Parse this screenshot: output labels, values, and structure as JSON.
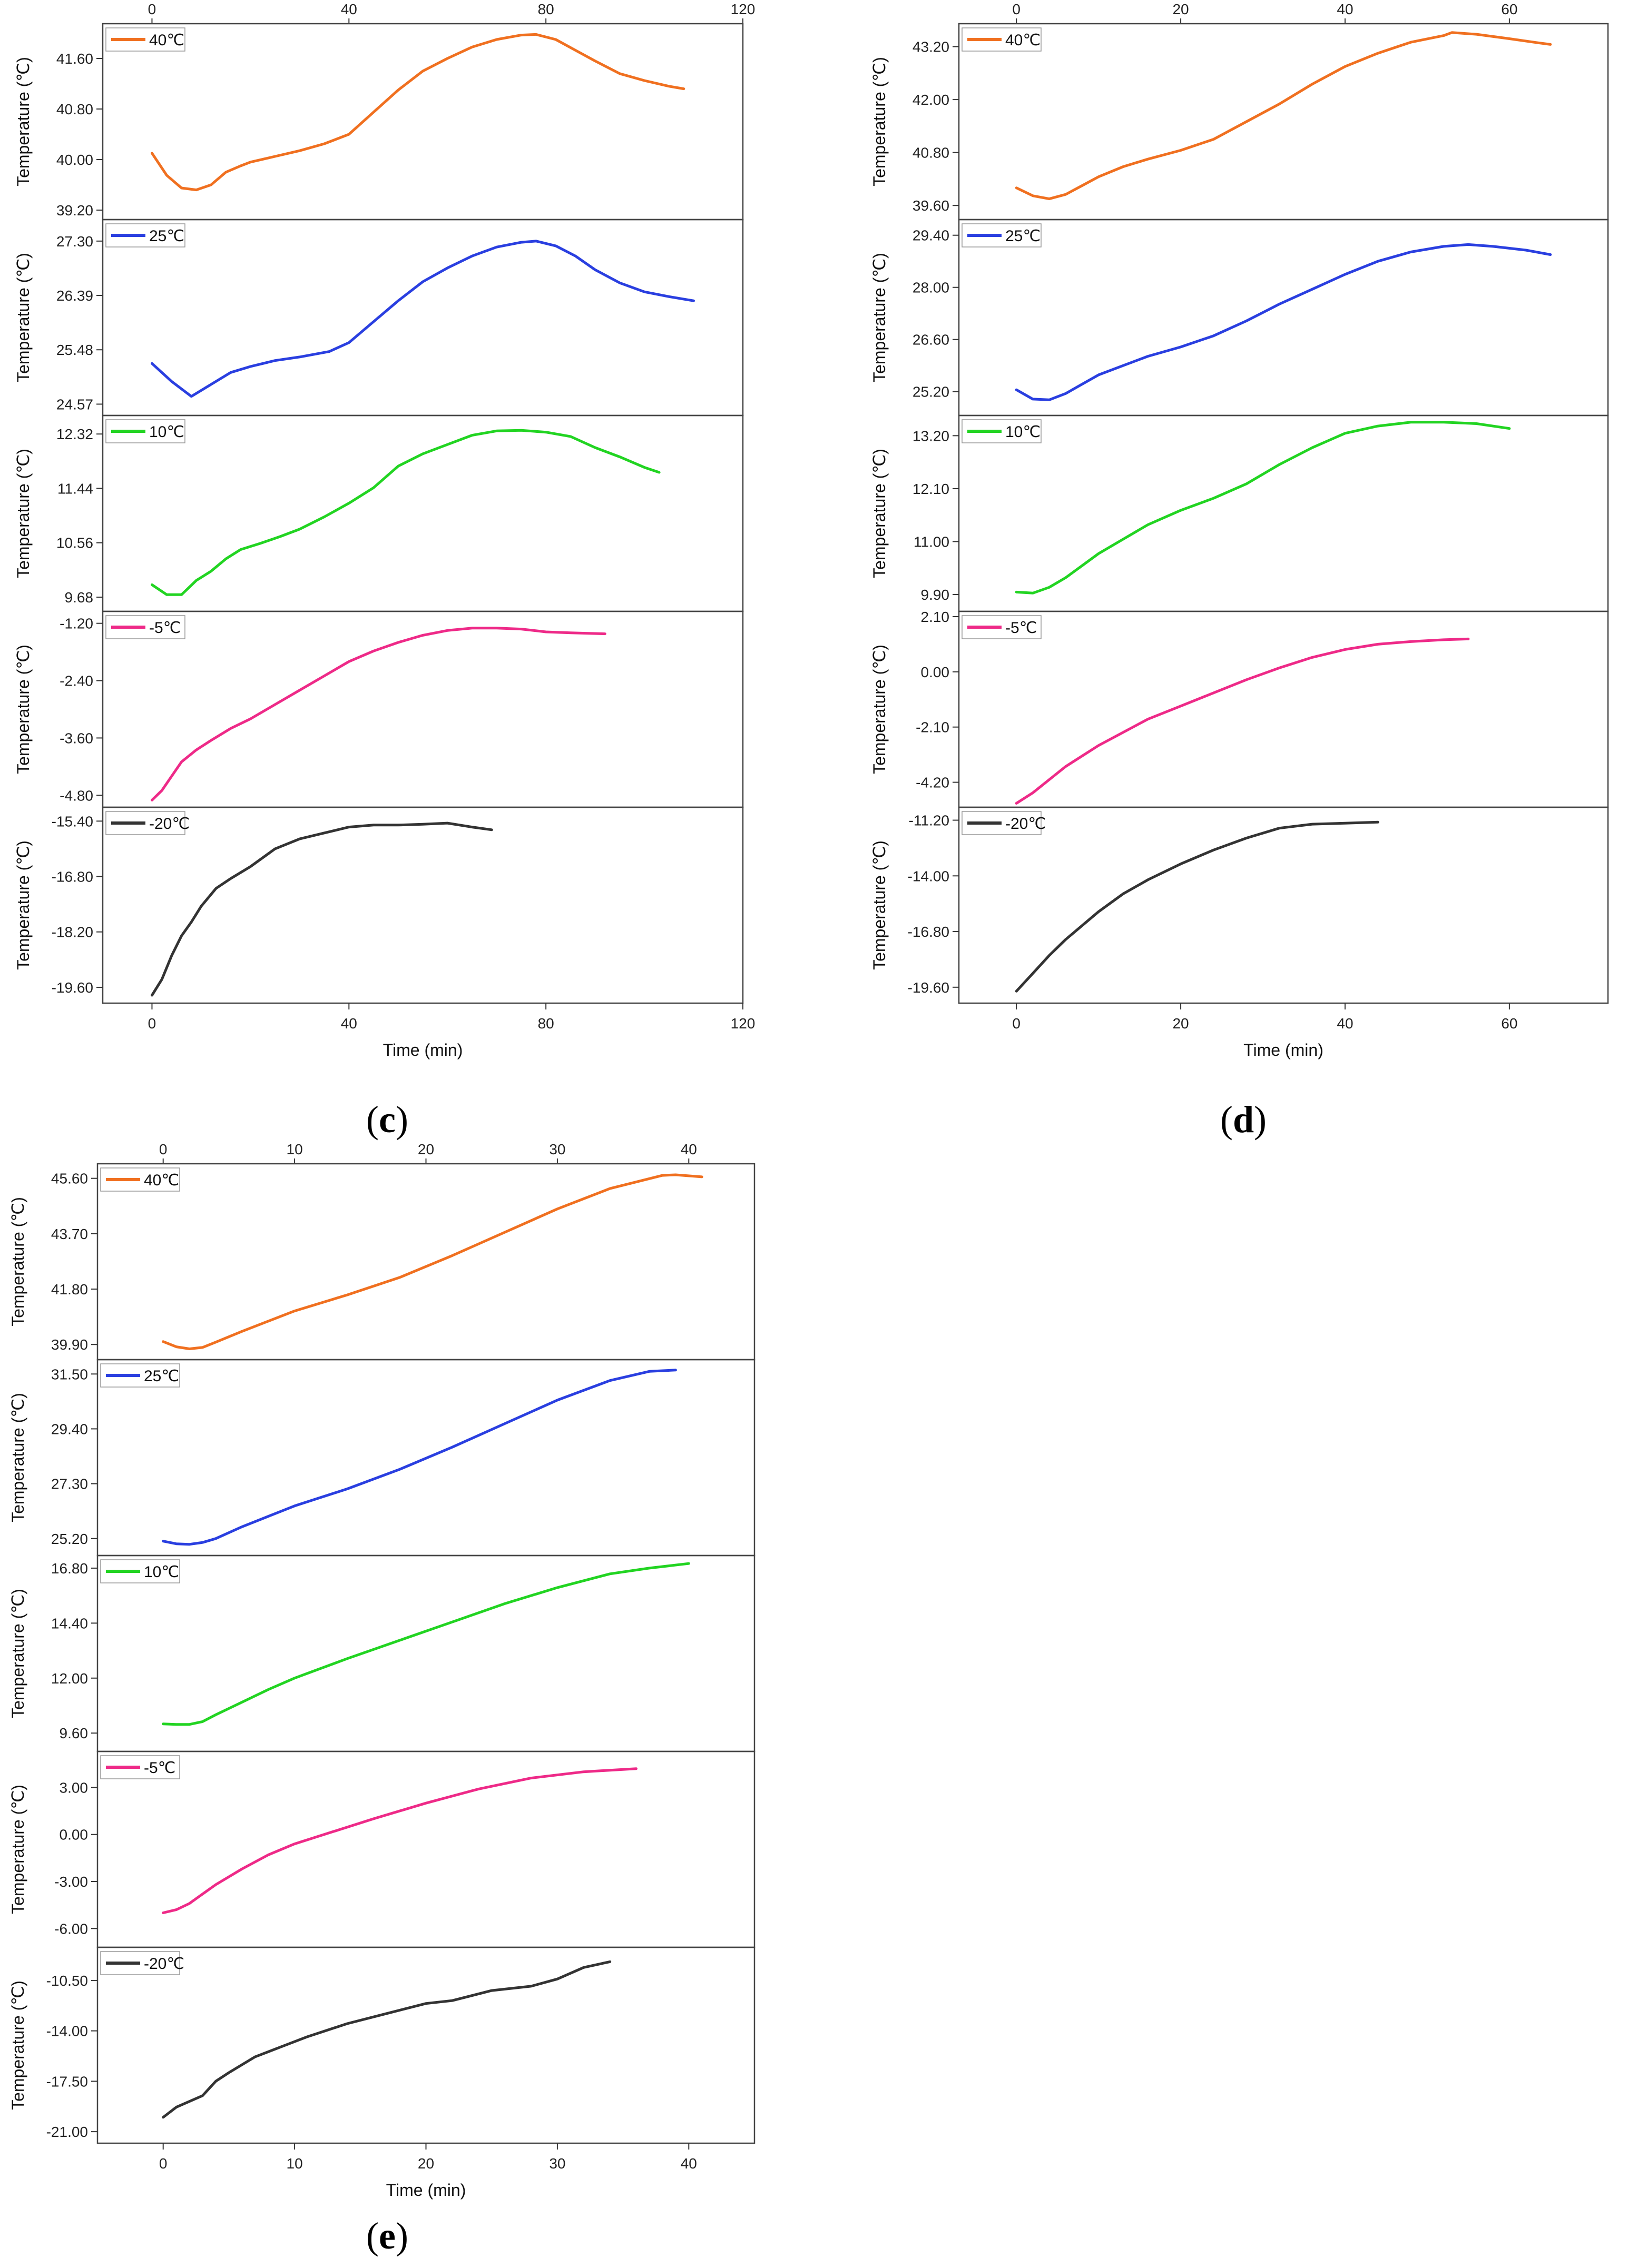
{
  "figure": {
    "caption_open": "(",
    "caption_close": ")",
    "ylabel": "Temperature (℃)",
    "xlabel": "Time (min)"
  },
  "chart_data": [
    {
      "id": "c",
      "label": "c",
      "type": "line",
      "xlabel": "Time (min)",
      "xlim": [
        -10,
        120
      ],
      "xticks": [
        0,
        40,
        80,
        120
      ],
      "subplots": [
        {
          "name": "40℃",
          "color": "#f07020",
          "ylim": [
            39.05,
            42.15
          ],
          "yticks": [
            39.2,
            40.0,
            40.8,
            41.6
          ],
          "x": [
            0,
            3,
            6,
            9,
            12,
            15,
            18,
            20,
            25,
            30,
            35,
            40,
            45,
            50,
            55,
            60,
            65,
            70,
            75,
            78,
            82,
            86,
            90,
            95,
            100,
            105,
            108
          ],
          "y": [
            40.1,
            39.75,
            39.55,
            39.52,
            39.6,
            39.8,
            39.9,
            39.96,
            40.05,
            40.14,
            40.25,
            40.4,
            40.75,
            41.1,
            41.4,
            41.6,
            41.78,
            41.9,
            41.97,
            41.98,
            41.9,
            41.73,
            41.56,
            41.36,
            41.25,
            41.16,
            41.12
          ]
        },
        {
          "name": "25℃",
          "color": "#2a3fe0",
          "ylim": [
            24.38,
            27.66
          ],
          "yticks": [
            24.57,
            25.48,
            26.39,
            27.3
          ],
          "x": [
            0,
            4,
            8,
            12,
            16,
            20,
            25,
            30,
            36,
            40,
            45,
            50,
            55,
            60,
            65,
            70,
            75,
            78,
            82,
            86,
            90,
            95,
            100,
            105,
            110
          ],
          "y": [
            25.25,
            24.95,
            24.7,
            24.9,
            25.1,
            25.2,
            25.3,
            25.36,
            25.45,
            25.6,
            25.95,
            26.3,
            26.62,
            26.85,
            27.05,
            27.2,
            27.28,
            27.3,
            27.22,
            27.05,
            26.82,
            26.6,
            26.45,
            26.37,
            26.3
          ]
        },
        {
          "name": "10℃",
          "color": "#22d422",
          "ylim": [
            9.45,
            12.62
          ],
          "yticks": [
            9.68,
            10.56,
            11.44,
            12.32
          ],
          "x": [
            0,
            3,
            6,
            9,
            12,
            15,
            18,
            22,
            26,
            30,
            35,
            40,
            45,
            50,
            55,
            60,
            65,
            70,
            75,
            80,
            85,
            90,
            95,
            100,
            103
          ],
          "y": [
            9.88,
            9.72,
            9.72,
            9.95,
            10.1,
            10.3,
            10.45,
            10.55,
            10.66,
            10.78,
            10.98,
            11.2,
            11.45,
            11.8,
            12.0,
            12.15,
            12.3,
            12.37,
            12.38,
            12.35,
            12.28,
            12.1,
            11.95,
            11.78,
            11.7
          ]
        },
        {
          "name": "-5℃",
          "color": "#ee2a88",
          "ylim": [
            -5.05,
            -0.95
          ],
          "yticks": [
            -4.8,
            -3.6,
            -2.4,
            -1.2
          ],
          "x": [
            0,
            2,
            4,
            6,
            9,
            12,
            16,
            20,
            25,
            30,
            35,
            40,
            45,
            50,
            55,
            60,
            65,
            70,
            75,
            80,
            85,
            92
          ],
          "y": [
            -4.9,
            -4.7,
            -4.4,
            -4.1,
            -3.85,
            -3.65,
            -3.4,
            -3.2,
            -2.9,
            -2.6,
            -2.3,
            -2.0,
            -1.78,
            -1.6,
            -1.45,
            -1.35,
            -1.3,
            -1.3,
            -1.32,
            -1.38,
            -1.4,
            -1.42
          ]
        },
        {
          "name": "-20℃",
          "color": "#333333",
          "ylim": [
            -20.0,
            -15.05
          ],
          "yticks": [
            -19.6,
            -18.2,
            -16.8,
            -15.4
          ],
          "x": [
            0,
            2,
            4,
            6,
            8,
            10,
            13,
            16,
            20,
            25,
            30,
            35,
            40,
            45,
            50,
            55,
            60,
            65,
            69
          ],
          "y": [
            -19.8,
            -19.4,
            -18.8,
            -18.3,
            -17.95,
            -17.55,
            -17.1,
            -16.85,
            -16.55,
            -16.1,
            -15.85,
            -15.7,
            -15.55,
            -15.5,
            -15.5,
            -15.48,
            -15.45,
            -15.55,
            -15.62
          ]
        }
      ]
    },
    {
      "id": "d",
      "label": "d",
      "type": "line",
      "xlabel": "Time (min)",
      "xlim": [
        -7,
        72
      ],
      "xticks": [
        0,
        20,
        40,
        60
      ],
      "subplots": [
        {
          "name": "40℃",
          "color": "#f07020",
          "ylim": [
            39.28,
            43.72
          ],
          "yticks": [
            39.6,
            40.8,
            42.0,
            43.2
          ],
          "x": [
            0,
            2,
            4,
            6,
            8,
            10,
            13,
            16,
            20,
            24,
            28,
            32,
            36,
            40,
            44,
            48,
            52,
            53,
            56,
            60,
            63,
            65
          ],
          "y": [
            40.0,
            39.82,
            39.75,
            39.85,
            40.05,
            40.25,
            40.48,
            40.65,
            40.85,
            41.1,
            41.5,
            41.9,
            42.35,
            42.75,
            43.05,
            43.3,
            43.45,
            43.52,
            43.48,
            43.38,
            43.3,
            43.25
          ]
        },
        {
          "name": "25℃",
          "color": "#2a3fe0",
          "ylim": [
            24.56,
            29.82
          ],
          "yticks": [
            25.2,
            26.6,
            28.0,
            29.4
          ],
          "x": [
            0,
            2,
            4,
            6,
            8,
            10,
            13,
            16,
            20,
            24,
            28,
            32,
            36,
            40,
            44,
            48,
            52,
            55,
            58,
            62,
            65
          ],
          "y": [
            25.25,
            25.0,
            24.98,
            25.15,
            25.4,
            25.65,
            25.9,
            26.15,
            26.4,
            26.7,
            27.1,
            27.55,
            27.95,
            28.35,
            28.7,
            28.95,
            29.1,
            29.15,
            29.1,
            29.0,
            28.88
          ]
        },
        {
          "name": "10℃",
          "color": "#22d422",
          "ylim": [
            9.55,
            13.62
          ],
          "yticks": [
            9.9,
            11.0,
            12.1,
            13.2
          ],
          "x": [
            0,
            2,
            4,
            6,
            8,
            10,
            13,
            16,
            20,
            24,
            28,
            32,
            36,
            40,
            44,
            48,
            52,
            56,
            60
          ],
          "y": [
            9.95,
            9.93,
            10.05,
            10.25,
            10.5,
            10.75,
            11.05,
            11.35,
            11.65,
            11.9,
            12.2,
            12.6,
            12.95,
            13.25,
            13.4,
            13.48,
            13.48,
            13.45,
            13.35
          ]
        },
        {
          "name": "-5℃",
          "color": "#ee2a88",
          "ylim": [
            -5.15,
            2.3
          ],
          "yticks": [
            -4.2,
            -2.1,
            0.0,
            2.1
          ],
          "x": [
            0,
            2,
            4,
            6,
            8,
            10,
            13,
            16,
            20,
            24,
            28,
            32,
            36,
            40,
            44,
            48,
            52,
            55
          ],
          "y": [
            -5.0,
            -4.6,
            -4.1,
            -3.6,
            -3.2,
            -2.8,
            -2.3,
            -1.8,
            -1.3,
            -0.8,
            -0.3,
            0.15,
            0.55,
            0.85,
            1.05,
            1.15,
            1.22,
            1.25
          ]
        },
        {
          "name": "-20℃",
          "color": "#333333",
          "ylim": [
            -20.4,
            -10.55
          ],
          "yticks": [
            -19.6,
            -16.8,
            -14.0,
            -11.2
          ],
          "x": [
            0,
            2,
            4,
            6,
            8,
            10,
            13,
            16,
            20,
            24,
            28,
            32,
            36,
            40,
            44
          ],
          "y": [
            -19.8,
            -18.9,
            -18.0,
            -17.2,
            -16.5,
            -15.8,
            -14.9,
            -14.2,
            -13.4,
            -12.7,
            -12.1,
            -11.6,
            -11.4,
            -11.35,
            -11.3
          ]
        }
      ]
    },
    {
      "id": "e",
      "label": "e",
      "type": "line",
      "xlabel": "Time (min)",
      "xlim": [
        -5,
        45
      ],
      "xticks": [
        0,
        10,
        20,
        30,
        40
      ],
      "subplots": [
        {
          "name": "40℃",
          "color": "#f07020",
          "ylim": [
            39.38,
            46.1
          ],
          "yticks": [
            39.9,
            41.8,
            43.7,
            45.6
          ],
          "x": [
            0,
            1,
            2,
            3,
            4,
            6,
            8,
            10,
            14,
            18,
            22,
            26,
            30,
            34,
            38,
            39,
            41
          ],
          "y": [
            40.0,
            39.82,
            39.75,
            39.8,
            39.98,
            40.35,
            40.7,
            41.05,
            41.6,
            42.2,
            42.95,
            43.75,
            44.55,
            45.25,
            45.7,
            45.72,
            45.65
          ]
        },
        {
          "name": "25℃",
          "color": "#2a3fe0",
          "ylim": [
            24.55,
            32.05
          ],
          "yticks": [
            25.2,
            27.3,
            29.4,
            31.5
          ],
          "x": [
            0,
            1,
            2,
            3,
            4,
            6,
            8,
            10,
            14,
            18,
            22,
            26,
            30,
            34,
            37,
            39
          ],
          "y": [
            25.1,
            25.0,
            24.98,
            25.05,
            25.2,
            25.65,
            26.05,
            26.45,
            27.1,
            27.85,
            28.7,
            29.6,
            30.5,
            31.25,
            31.6,
            31.65
          ]
        },
        {
          "name": "10℃",
          "color": "#22d422",
          "ylim": [
            8.8,
            17.35
          ],
          "yticks": [
            9.6,
            12.0,
            14.4,
            16.8
          ],
          "x": [
            0,
            1,
            2,
            3,
            4,
            6,
            8,
            10,
            14,
            18,
            22,
            26,
            30,
            34,
            37,
            40
          ],
          "y": [
            10.0,
            9.98,
            9.98,
            10.1,
            10.4,
            10.95,
            11.5,
            12.0,
            12.85,
            13.65,
            14.45,
            15.25,
            15.95,
            16.55,
            16.8,
            17.0
          ]
        },
        {
          "name": "-5℃",
          "color": "#ee2a88",
          "ylim": [
            -7.2,
            5.3
          ],
          "yticks": [
            -6.0,
            -3.0,
            0.0,
            3.0
          ],
          "x": [
            0,
            1,
            2,
            3,
            4,
            6,
            8,
            10,
            13,
            16,
            20,
            24,
            28,
            32,
            36
          ],
          "y": [
            -5.0,
            -4.8,
            -4.4,
            -3.8,
            -3.2,
            -2.2,
            -1.3,
            -0.6,
            0.2,
            1.0,
            2.0,
            2.9,
            3.6,
            4.0,
            4.2
          ]
        },
        {
          "name": "-20℃",
          "color": "#333333",
          "ylim": [
            -21.8,
            -8.2
          ],
          "yticks": [
            -21.0,
            -17.5,
            -14.0,
            -10.5
          ],
          "x": [
            0,
            1,
            3,
            4,
            5,
            7,
            9,
            11,
            14,
            17,
            20,
            22,
            25,
            28,
            30,
            32,
            34
          ],
          "y": [
            -20.0,
            -19.3,
            -18.5,
            -17.5,
            -16.9,
            -15.8,
            -15.1,
            -14.4,
            -13.5,
            -12.8,
            -12.1,
            -11.9,
            -11.2,
            -10.9,
            -10.4,
            -9.6,
            -9.2
          ]
        }
      ]
    }
  ]
}
